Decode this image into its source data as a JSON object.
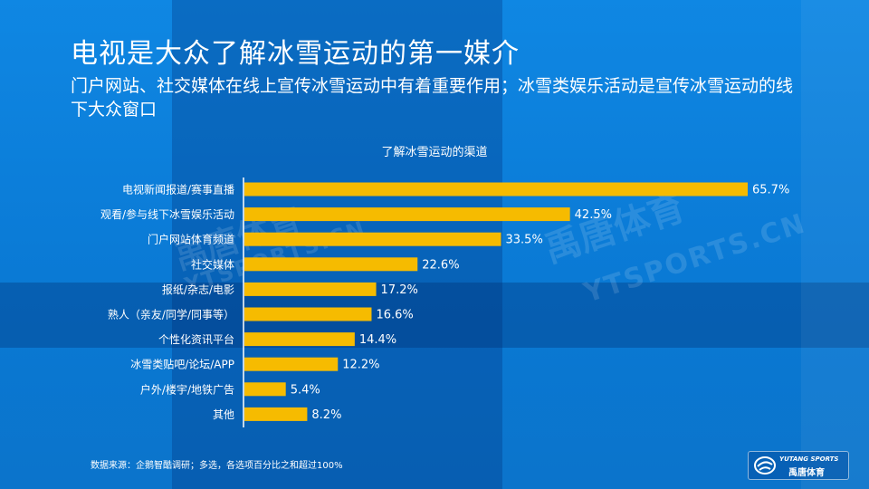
{
  "page": {
    "title": "电视是大众了解冰雪运动的第一媒介",
    "subtitle": "门户网站、社交媒体在线上宣传冰雪运动中有着重要作用；冰雪类娱乐活动是宣传冰雪运动的线下大众窗口",
    "source_note": "数据来源：企鹅智酷调研；多选，各选项百分比之和超过100%",
    "watermark_cn": "禹唐体育",
    "watermark_en": "YTSPORTS.CN",
    "logo_en": "YUTANG SPORTS",
    "logo_cn": "禹唐体育"
  },
  "colors": {
    "bar": "#f6bb00",
    "background": "#0d7bd6",
    "text": "#ffffff"
  },
  "chart_data": {
    "type": "bar",
    "orientation": "horizontal",
    "title": "了解冰雪运动的渠道",
    "categories": [
      "电视新闻报道/赛事直播",
      "观看/参与线下冰雪娱乐活动",
      "门户网站体育频道",
      "社交媒体",
      "报纸/杂志/电影",
      "熟人（亲友/同学/同事等）",
      "个性化资讯平台",
      "冰雪类贴吧/论坛/APP",
      "户外/楼宇/地铁广告",
      "其他"
    ],
    "values": [
      65.7,
      42.5,
      33.5,
      22.6,
      17.2,
      16.6,
      14.4,
      12.2,
      5.4,
      8.2
    ],
    "value_labels": [
      "65.7%",
      "42.5%",
      "33.5%",
      "22.6%",
      "17.2%",
      "16.6%",
      "14.4%",
      "12.2%",
      "5.4%",
      "8.2%"
    ],
    "unit": "%",
    "xlim": [
      0,
      70
    ],
    "grid": false,
    "legend": "none"
  }
}
